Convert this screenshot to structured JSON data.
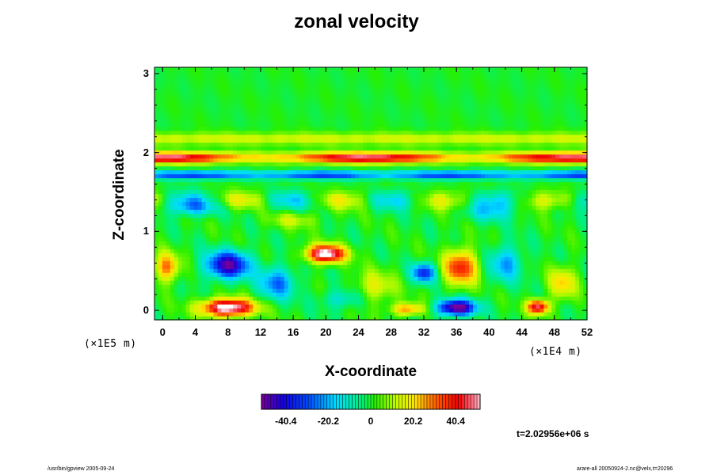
{
  "chart_data": {
    "type": "heatmap",
    "title": "zonal velocity",
    "xlabel": "X-coordinate",
    "ylabel": "Z-coordinate",
    "x_scale_label": "(×1E4 m)",
    "y_scale_label": "(×1E5 m)",
    "xlim": [
      -1,
      52
    ],
    "ylim": [
      -0.12,
      3.08
    ],
    "x_ticks": [
      "0",
      "4",
      "8",
      "12",
      "16",
      "20",
      "24",
      "28",
      "32",
      "36",
      "40",
      "44",
      "48",
      "52"
    ],
    "y_ticks": [
      "0",
      "1",
      "2",
      "3"
    ],
    "colorbar": {
      "range": [
        -52,
        52
      ],
      "tick_labels": [
        "-40.4",
        "-20.2",
        "0",
        "20.2",
        "40.4"
      ],
      "tick_values": [
        -40.4,
        -20.2,
        0,
        20.2,
        40.4
      ]
    },
    "features": [
      {
        "x": 26,
        "z": 1.92,
        "value": 45,
        "desc": "strong eastward jet band"
      },
      {
        "x": 26,
        "z": 1.72,
        "value": -35,
        "desc": "westward band below jet"
      },
      {
        "x": 8,
        "z": 0.58,
        "value": -45,
        "desc": "negative cell"
      },
      {
        "x": 20,
        "z": 0.72,
        "value": 50,
        "desc": "positive cell"
      },
      {
        "x": 8,
        "z": 0.05,
        "value": 55,
        "desc": "positive cell near bottom"
      },
      {
        "x": 36,
        "z": 0.05,
        "value": -52,
        "desc": "negative cell near bottom"
      },
      {
        "x": 46,
        "z": 0.05,
        "value": 45,
        "desc": "positive cell"
      },
      {
        "x": 32,
        "z": 0.5,
        "value": -35,
        "desc": "negative cell"
      },
      {
        "x": 36,
        "z": 0.55,
        "value": 35,
        "desc": "positive cell"
      }
    ]
  },
  "time_label": "t=2.02956e+06 s",
  "footer_left": "/usr/bin/gpview 2005-09-24",
  "footer_right": "arare-all 20050924-2.nc@velx,t=20296"
}
